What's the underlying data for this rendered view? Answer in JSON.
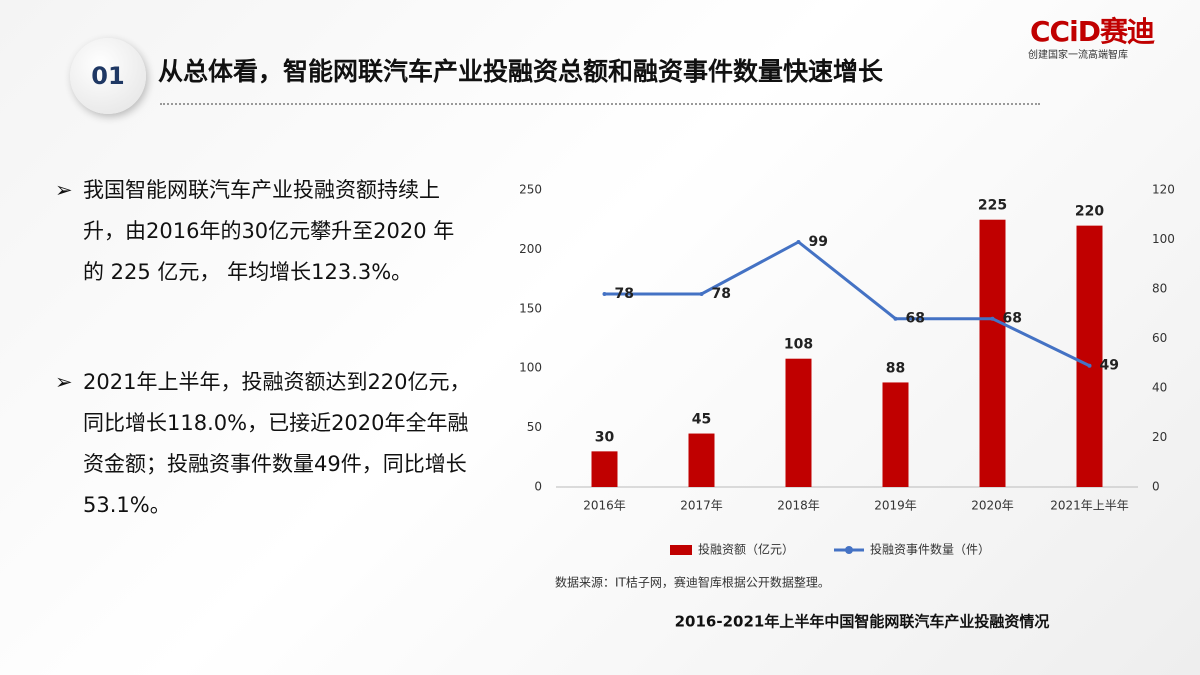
{
  "header": {
    "number": "01",
    "title": "从总体看，智能网联汽车产业投融资总额和融资事件数量快速增长"
  },
  "logo": {
    "brand": "CCiD赛迪",
    "slogan": "创建国家一流高端智库"
  },
  "bullets": [
    "我国智能网联汽车产业投融资额持续上升，由2016年的30亿元攀升至2020 年的 225 亿元， 年均增长123.3%。",
    "2021年上半年，投融资额达到220亿元，同比增长118.0%，已接近2020年全年融资金额；投融资事件数量49件，同比增长53.1%。"
  ],
  "chart_data": {
    "type": "bar-line",
    "title": "2016-2021年上半年中国智能网联汽车产业投融资情况",
    "source": "数据来源：IT桔子网，赛迪智库根据公开数据整理。",
    "categories": [
      "2016年",
      "2017年",
      "2018年",
      "2019年",
      "2020年",
      "2021年上半年"
    ],
    "series": [
      {
        "name": "投融资额（亿元）",
        "type": "bar",
        "color": "#c00000",
        "values": [
          30,
          45,
          108,
          88,
          225,
          220
        ]
      },
      {
        "name": "投融资事件数量（件）",
        "type": "line",
        "axis": "y2",
        "color": "#4472c4",
        "values": [
          78,
          78,
          99,
          68,
          68,
          49
        ]
      }
    ],
    "ylim": [
      0,
      250
    ],
    "yticks": [
      0,
      50,
      100,
      150,
      200,
      250
    ],
    "y2lim": [
      0,
      120
    ],
    "y2ticks": [
      0,
      20,
      40,
      60,
      80,
      100,
      120
    ],
    "legend": "bottom"
  }
}
